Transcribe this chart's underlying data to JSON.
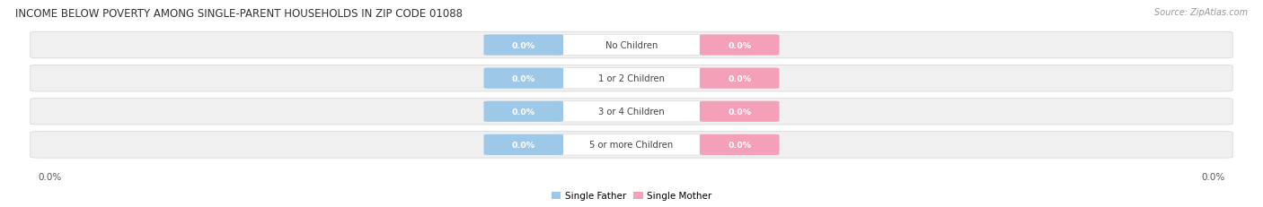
{
  "title": "INCOME BELOW POVERTY AMONG SINGLE-PARENT HOUSEHOLDS IN ZIP CODE 01088",
  "source": "Source: ZipAtlas.com",
  "categories": [
    "No Children",
    "1 or 2 Children",
    "3 or 4 Children",
    "5 or more Children"
  ],
  "single_father_values": [
    0.0,
    0.0,
    0.0,
    0.0
  ],
  "single_mother_values": [
    0.0,
    0.0,
    0.0,
    0.0
  ],
  "father_color": "#9DC8E8",
  "mother_color": "#F4A0B8",
  "bar_bg_color": "#F0F0F0",
  "bar_border_color": "#D8D8D8",
  "title_fontsize": 8.5,
  "source_fontsize": 7,
  "axis_label_fontsize": 7.5,
  "legend_fontsize": 7.5,
  "x_left_label": "0.0%",
  "x_right_label": "0.0%",
  "fig_bg_color": "#FFFFFF"
}
